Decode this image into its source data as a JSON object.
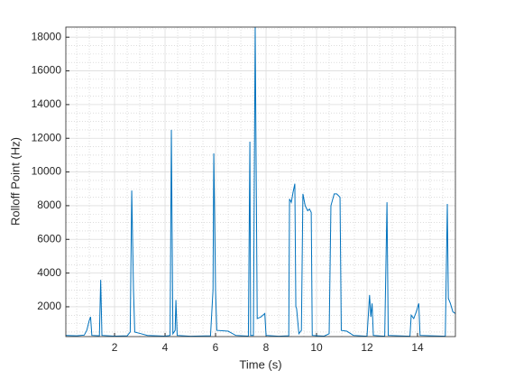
{
  "chart_data": {
    "type": "line",
    "xlabel": "Time (s)",
    "ylabel": "Rolloff Point (Hz)",
    "x": [
      0.07,
      0.5,
      0.8,
      0.9,
      1.0,
      1.05,
      1.1,
      1.4,
      1.45,
      1.5,
      2.0,
      2.5,
      2.62,
      2.68,
      2.75,
      2.8,
      3.0,
      3.3,
      4.0,
      4.2,
      4.25,
      4.31,
      4.4,
      4.43,
      4.48,
      5.0,
      5.8,
      5.9,
      5.93,
      6.0,
      6.05,
      6.5,
      6.8,
      7.3,
      7.36,
      7.39,
      7.5,
      7.57,
      7.65,
      7.8,
      7.95,
      8.0,
      8.5,
      8.9,
      8.93,
      9.0,
      9.07,
      9.14,
      9.18,
      9.21,
      9.3,
      9.4,
      9.46,
      9.55,
      9.65,
      9.72,
      9.79,
      9.83,
      10.3,
      10.5,
      10.57,
      10.7,
      10.8,
      10.93,
      10.98,
      11.2,
      11.46,
      12.0,
      12.1,
      12.15,
      12.2,
      12.25,
      12.7,
      12.79,
      12.84,
      13.7,
      13.75,
      13.85,
      13.95,
      14.05,
      14.1,
      15.1,
      15.18,
      15.22,
      15.3,
      15.4,
      15.5
    ],
    "series": [
      {
        "color": "#0072BD",
        "values": [
          300,
          280,
          320,
          600,
          1200,
          1400,
          300,
          280,
          3600,
          300,
          260,
          280,
          500,
          8900,
          3000,
          500,
          420,
          300,
          260,
          300,
          12500,
          400,
          600,
          2400,
          300,
          250,
          280,
          3000,
          11100,
          3000,
          600,
          550,
          300,
          260,
          11800,
          300,
          300,
          18600,
          1300,
          1400,
          1600,
          300,
          250,
          280,
          8400,
          8200,
          8800,
          9300,
          2000,
          1900,
          400,
          600,
          8700,
          8000,
          7700,
          7800,
          7600,
          300,
          260,
          400,
          8000,
          8700,
          8700,
          8500,
          600,
          550,
          300,
          250,
          2700,
          1400,
          2200,
          300,
          250,
          8200,
          300,
          250,
          1500,
          1300,
          1700,
          2200,
          300,
          250,
          8100,
          2500,
          2200,
          1700,
          1600
        ]
      }
    ],
    "xlim": [
      0.07,
      15.5
    ],
    "ylim": [
      230,
      18600
    ],
    "xticks": [
      2,
      4,
      6,
      8,
      10,
      12,
      14
    ],
    "yticks": [
      2000,
      4000,
      6000,
      8000,
      10000,
      12000,
      14000,
      16000,
      18000
    ],
    "xminorticks": [
      0.5,
      1,
      1.5,
      2.5,
      3,
      3.5,
      4.5,
      5,
      5.5,
      6.5,
      7,
      7.5,
      8.5,
      9,
      9.5,
      10.5,
      11,
      11.5,
      12.5,
      13,
      13.5,
      14.5,
      15,
      15.5
    ],
    "yminorticks": [
      500,
      1000,
      1500,
      2500,
      3000,
      3500,
      4500,
      5000,
      5500,
      6500,
      7000,
      7500,
      8500,
      9000,
      9500,
      10500,
      11000,
      11500,
      12500,
      13000,
      13500,
      14500,
      15000,
      15500,
      16500,
      17000,
      17500,
      18500
    ],
    "grid": true,
    "minor_grid": true
  }
}
